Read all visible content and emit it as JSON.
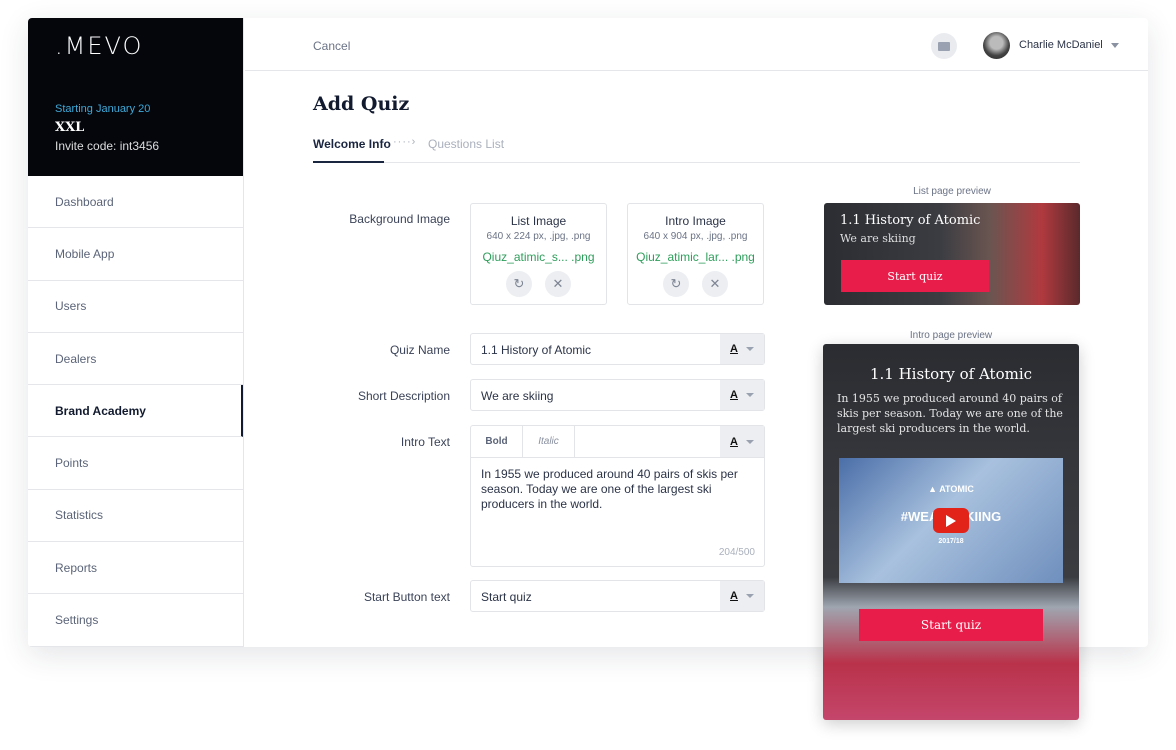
{
  "sidebar": {
    "logo": ".MEVO",
    "starting": "Starting January 20",
    "org": "XXL",
    "invite": "Invite code: int3456",
    "items": [
      {
        "label": "Dashboard"
      },
      {
        "label": "Mobile App"
      },
      {
        "label": "Users"
      },
      {
        "label": "Dealers"
      },
      {
        "label": "Brand Academy",
        "active": true
      },
      {
        "label": "Points"
      },
      {
        "label": "Statistics"
      },
      {
        "label": "Reports"
      },
      {
        "label": "Settings"
      }
    ]
  },
  "header": {
    "cancel": "Cancel",
    "user": "Charlie McDaniel",
    "icons": [
      "mail-icon",
      "avatar",
      "chevron-down-icon"
    ]
  },
  "page": {
    "title": "Add Quiz",
    "tabs": [
      {
        "label": "Welcome Info",
        "active": true
      },
      {
        "label": "Questions List"
      }
    ],
    "tab_separator": "····›"
  },
  "form": {
    "background_label": "Background Image",
    "list_image": {
      "title": "List Image",
      "spec": "640 x 224 px, .jpg, .png",
      "file": "Qiuz_atimic_s... .png"
    },
    "intro_image": {
      "title": "Intro Image",
      "spec": "640 x 904 px, .jpg, .png",
      "file": "Qiuz_atimic_lar... .png"
    },
    "quiz_name": {
      "label": "Quiz Name",
      "value": "1.1 History of Atomic"
    },
    "short_desc": {
      "label": "Short Description",
      "value": "We are skiing"
    },
    "intro": {
      "label": "Intro Text",
      "bold": "Bold",
      "italic": "Italic",
      "value": "In 1955 we produced around 40 pairs of skis per season. Today we are one of the largest ski producers in the world.",
      "count": "204/500"
    },
    "start_btn": {
      "label": "Start Button text",
      "value": "Start quiz"
    },
    "format_glyph": "A"
  },
  "preview": {
    "list_label": "List page preview",
    "intro_label": "Intro page preview",
    "title": "1.1 History of Atomic",
    "desc": "We are skiing",
    "intro_text": "In 1955 we produced around 40 pairs of skis per season. Today we are one of the largest ski producers in the world.",
    "button": "Start quiz",
    "video": {
      "brand": "▲ ATOMIC",
      "headline": "#WEARESKIING",
      "year": "2017/18"
    }
  },
  "colors": {
    "accent": "#e81d4a",
    "sidebar_bg": "#04060c",
    "file_green": "#2e9e5b",
    "link_blue": "#3fa9d8"
  }
}
